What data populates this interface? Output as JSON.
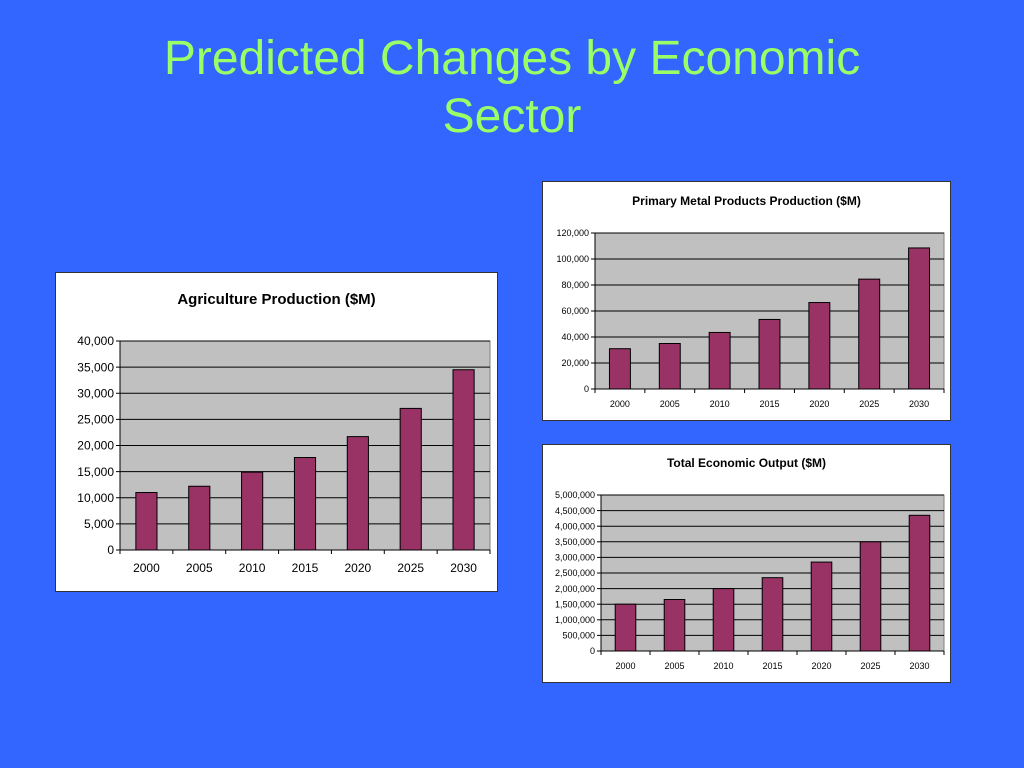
{
  "slide": {
    "title_line1": "Predicted Changes by Economic",
    "title_line2": "Sector"
  },
  "colors": {
    "background": "#3366ff",
    "title": "#99ff66",
    "plot_area": "#c0c0c0",
    "bar": "#993366",
    "gridline": "#000000"
  },
  "chart_data": [
    {
      "type": "bar",
      "title": "Agriculture Production ($M)",
      "categories": [
        "2000",
        "2005",
        "2010",
        "2015",
        "2020",
        "2025",
        "2030"
      ],
      "values": [
        11000,
        12200,
        14900,
        17700,
        21700,
        27100,
        34500
      ],
      "ylim": [
        0,
        40000
      ],
      "yticks": [
        "0",
        "5,000",
        "10,000",
        "15,000",
        "20,000",
        "25,000",
        "30,000",
        "35,000",
        "40,000"
      ],
      "xlabel": "",
      "ylabel": "",
      "grid": true,
      "legend": "none"
    },
    {
      "type": "bar",
      "title": "Primary Metal Products Production ($M)",
      "categories": [
        "2000",
        "2005",
        "2010",
        "2015",
        "2020",
        "2025",
        "2030"
      ],
      "values": [
        31000,
        35000,
        43500,
        53500,
        66500,
        84500,
        108500
      ],
      "ylim": [
        0,
        120000
      ],
      "yticks": [
        "0",
        "20,000",
        "40,000",
        "60,000",
        "80,000",
        "100,000",
        "120,000"
      ],
      "xlabel": "",
      "ylabel": "",
      "grid": true,
      "legend": "none"
    },
    {
      "type": "bar",
      "title": "Total Economic Output ($M)",
      "categories": [
        "2000",
        "2005",
        "2010",
        "2015",
        "2020",
        "2025",
        "2030"
      ],
      "values": [
        1500000,
        1650000,
        2000000,
        2350000,
        2850000,
        3500000,
        4350000
      ],
      "ylim": [
        0,
        5000000
      ],
      "yticks": [
        "0",
        "500,000",
        "1,000,000",
        "1,500,000",
        "2,000,000",
        "2,500,000",
        "3,000,000",
        "3,500,000",
        "4,000,000",
        "4,500,000",
        "5,000,000"
      ],
      "xlabel": "",
      "ylabel": "",
      "grid": true,
      "legend": "none"
    }
  ]
}
